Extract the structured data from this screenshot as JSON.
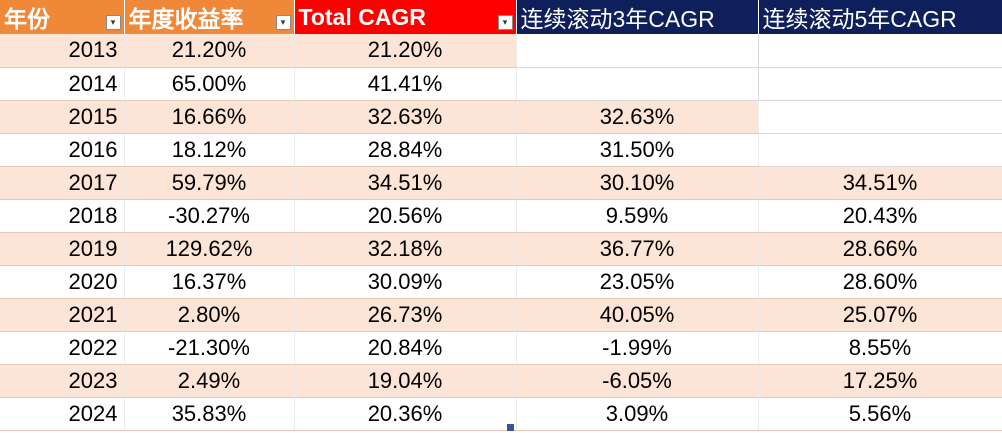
{
  "colors": {
    "header_orange": "#f0883a",
    "header_red": "#ff0000",
    "header_navy": "#0e1f5b",
    "row_shaded": "#fce4d6",
    "row_plain": "#ffffff",
    "resize_handle": "#3b4ea0"
  },
  "icons": {
    "filter": "filter-dropdown-icon",
    "resize": "table-resize-handle-icon"
  },
  "filter_glyph": "▾",
  "headers": [
    "年份",
    "年度收益率",
    "Total CAGR",
    "连续滚动3年CAGR",
    "连续滚动5年CAGR"
  ],
  "rows": [
    {
      "year": "2013",
      "annual_return": "21.20%",
      "total_cagr": "21.20%",
      "rolling_3y": "",
      "rolling_5y": ""
    },
    {
      "year": "2014",
      "annual_return": "65.00%",
      "total_cagr": "41.41%",
      "rolling_3y": "",
      "rolling_5y": ""
    },
    {
      "year": "2015",
      "annual_return": "16.66%",
      "total_cagr": "32.63%",
      "rolling_3y": "32.63%",
      "rolling_5y": ""
    },
    {
      "year": "2016",
      "annual_return": "18.12%",
      "total_cagr": "28.84%",
      "rolling_3y": "31.50%",
      "rolling_5y": ""
    },
    {
      "year": "2017",
      "annual_return": "59.79%",
      "total_cagr": "34.51%",
      "rolling_3y": "30.10%",
      "rolling_5y": "34.51%"
    },
    {
      "year": "2018",
      "annual_return": "-30.27%",
      "total_cagr": "20.56%",
      "rolling_3y": "9.59%",
      "rolling_5y": "20.43%"
    },
    {
      "year": "2019",
      "annual_return": "129.62%",
      "total_cagr": "32.18%",
      "rolling_3y": "36.77%",
      "rolling_5y": "28.66%"
    },
    {
      "year": "2020",
      "annual_return": "16.37%",
      "total_cagr": "30.09%",
      "rolling_3y": "23.05%",
      "rolling_5y": "28.60%"
    },
    {
      "year": "2021",
      "annual_return": "2.80%",
      "total_cagr": "26.73%",
      "rolling_3y": "40.05%",
      "rolling_5y": "25.07%"
    },
    {
      "year": "2022",
      "annual_return": "-21.30%",
      "total_cagr": "20.84%",
      "rolling_3y": "-1.99%",
      "rolling_5y": "8.55%"
    },
    {
      "year": "2023",
      "annual_return": "2.49%",
      "total_cagr": "19.04%",
      "rolling_3y": "-6.05%",
      "rolling_5y": "17.25%"
    },
    {
      "year": "2024",
      "annual_return": "35.83%",
      "total_cagr": "20.36%",
      "rolling_3y": "3.09%",
      "rolling_5y": "5.56%"
    }
  ]
}
